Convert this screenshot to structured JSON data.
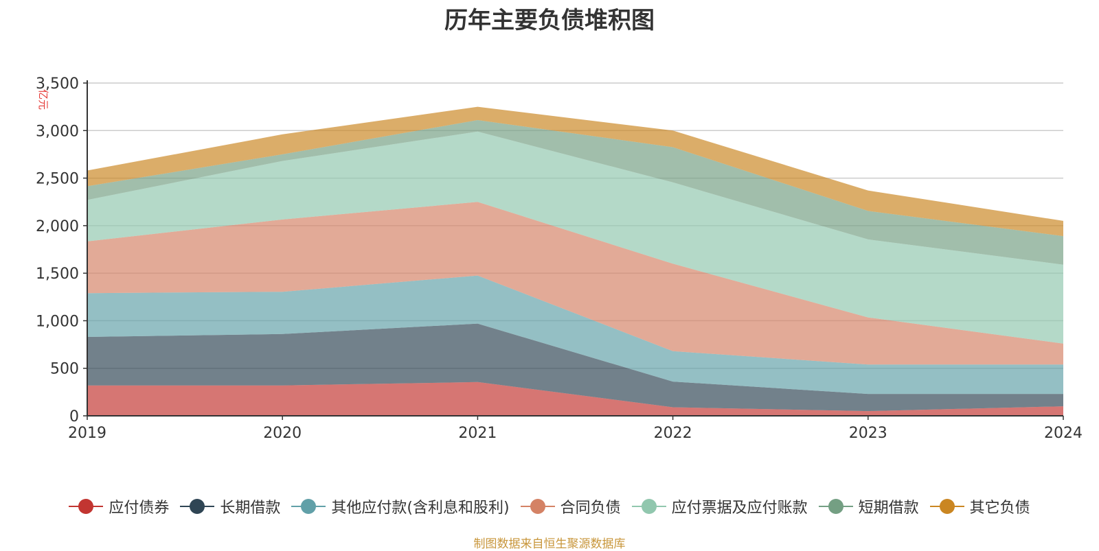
{
  "chart_data": {
    "type": "area",
    "stacked": true,
    "title": "历年主要负债堆积图",
    "ylabel": "亿元",
    "x": [
      "2019",
      "2020",
      "2021",
      "2022",
      "2023",
      "2024"
    ],
    "ylim": [
      0,
      3500
    ],
    "yticks": [
      "0",
      "500",
      "1,000",
      "1,500",
      "2,000",
      "2,500",
      "3,000",
      "3,500"
    ],
    "grid": true,
    "legend_position": "bottom",
    "series": [
      {
        "name": "应付债券",
        "color": "#c23531",
        "values": [
          320,
          320,
          355,
          90,
          50,
          100
        ]
      },
      {
        "name": "长期借款",
        "color": "#2f4554",
        "values": [
          510,
          540,
          615,
          270,
          180,
          130
        ]
      },
      {
        "name": "其他应付款(含利息和股利)",
        "color": "#61a0a8",
        "values": [
          460,
          445,
          505,
          320,
          310,
          310
        ]
      },
      {
        "name": "合同负债",
        "color": "#d48265",
        "values": [
          545,
          760,
          775,
          920,
          495,
          220
        ]
      },
      {
        "name": "应付票据及应付账款",
        "color": "#91c7ae",
        "values": [
          435,
          615,
          740,
          855,
          820,
          830
        ]
      },
      {
        "name": "短期借款",
        "color": "#749f83",
        "values": [
          145,
          70,
          120,
          370,
          300,
          300
        ]
      },
      {
        "name": "其它负债",
        "color": "#ca8622",
        "values": [
          165,
          210,
          140,
          175,
          215,
          160
        ]
      }
    ]
  },
  "source_note": "制图数据来自恒生聚源数据库"
}
